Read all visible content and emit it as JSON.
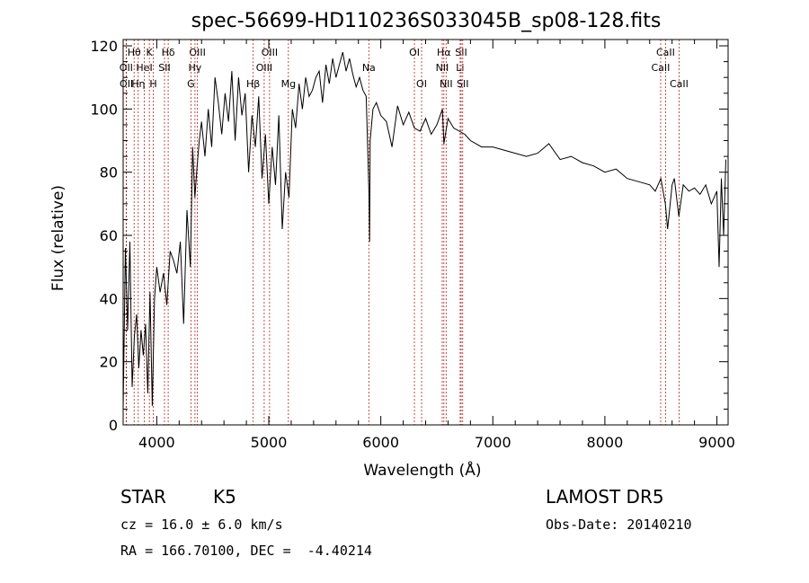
{
  "chart_data": {
    "type": "line",
    "title": "spec-56699-HD110236S033045B_sp08-128.fits",
    "xlabel": "Wavelength (Å)",
    "ylabel": "Flux (relative)",
    "xlim": [
      3700,
      9100
    ],
    "ylim": [
      0,
      122
    ],
    "xticks": [
      4000,
      5000,
      6000,
      7000,
      8000,
      9000
    ],
    "yticks": [
      0,
      20,
      40,
      60,
      80,
      100,
      120
    ],
    "grid": false,
    "series": [
      {
        "x": [
          3700,
          3720,
          3740,
          3760,
          3780,
          3800,
          3820,
          3840,
          3860,
          3880,
          3900,
          3920,
          3940,
          3960,
          3980,
          4000,
          4030,
          4060,
          4090,
          4120,
          4150,
          4180,
          4210,
          4240,
          4270,
          4300,
          4320,
          4340,
          4360,
          4380,
          4400,
          4430,
          4460,
          4490,
          4520,
          4550,
          4580,
          4610,
          4640,
          4670,
          4700,
          4730,
          4760,
          4790,
          4820,
          4850,
          4880,
          4910,
          4940,
          4970,
          5000,
          5030,
          5060,
          5090,
          5120,
          5150,
          5180,
          5210,
          5240,
          5270,
          5300,
          5330,
          5360,
          5390,
          5420,
          5450,
          5480,
          5510,
          5540,
          5570,
          5600,
          5630,
          5660,
          5690,
          5720,
          5750,
          5780,
          5810,
          5840,
          5870,
          5895,
          5900,
          5905,
          5930,
          5960,
          6000,
          6050,
          6100,
          6150,
          6200,
          6250,
          6300,
          6350,
          6400,
          6450,
          6500,
          6550,
          6563,
          6600,
          6650,
          6700,
          6750,
          6800,
          6900,
          7000,
          7100,
          7200,
          7300,
          7400,
          7500,
          7600,
          7700,
          7800,
          7900,
          8000,
          8100,
          8200,
          8300,
          8400,
          8450,
          8500,
          8540,
          8560,
          8600,
          8620,
          8660,
          8700,
          8750,
          8800,
          8850,
          8900,
          8950,
          9000,
          9020,
          9040,
          9060,
          9080
        ],
        "values": [
          5,
          56,
          30,
          58,
          12,
          28,
          35,
          18,
          30,
          22,
          32,
          10,
          42,
          6,
          40,
          50,
          42,
          48,
          38,
          55,
          52,
          48,
          58,
          32,
          68,
          50,
          88,
          72,
          82,
          90,
          96,
          85,
          100,
          88,
          110,
          102,
          92,
          105,
          96,
          112,
          90,
          110,
          98,
          105,
          80,
          98,
          88,
          104,
          78,
          92,
          70,
          88,
          76,
          98,
          62,
          80,
          72,
          100,
          94,
          108,
          100,
          110,
          104,
          106,
          110,
          112,
          102,
          114,
          108,
          116,
          110,
          114,
          118,
          112,
          116,
          111,
          107,
          110,
          106,
          104,
          72,
          58,
          90,
          100,
          102,
          98,
          96,
          88,
          101,
          95,
          99,
          94,
          93,
          97,
          92,
          95,
          100,
          89,
          97,
          94,
          93,
          92,
          90,
          88,
          88,
          87,
          86,
          85,
          86,
          89,
          84,
          85,
          83,
          82,
          80,
          81,
          78,
          77,
          76,
          74,
          78,
          70,
          62,
          76,
          78,
          66,
          76,
          74,
          75,
          73,
          76,
          70,
          74,
          50,
          78,
          60,
          84
        ]
      }
    ],
    "lines": [
      {
        "label": "Hθ",
        "x": 3798,
        "row": 1
      },
      {
        "label": "OII",
        "x": 3727,
        "row": 2
      },
      {
        "label": "OII",
        "x": 3729,
        "row": 3
      },
      {
        "label": "K",
        "x": 3934,
        "row": 1
      },
      {
        "label": "HeI",
        "x": 3889,
        "row": 2
      },
      {
        "label": "Hη",
        "x": 3835,
        "row": 3
      },
      {
        "label": "H",
        "x": 3969,
        "row": 3
      },
      {
        "label": "Hδ",
        "x": 4102,
        "row": 1
      },
      {
        "label": "SII",
        "x": 4069,
        "row": 2
      },
      {
        "label": "OIII",
        "x": 4363,
        "row": 1
      },
      {
        "label": "Hγ",
        "x": 4341,
        "row": 2
      },
      {
        "label": "G",
        "x": 4305,
        "row": 3
      },
      {
        "label": "OIII",
        "x": 5007,
        "row": 1
      },
      {
        "label": "OIII",
        "x": 4959,
        "row": 2
      },
      {
        "label": "Hβ",
        "x": 4861,
        "row": 3
      },
      {
        "label": "Mg",
        "x": 5175,
        "row": 3
      },
      {
        "label": "Na",
        "x": 5893,
        "row": 2
      },
      {
        "label": "OI",
        "x": 6300,
        "row": 1
      },
      {
        "label": "OI",
        "x": 6364,
        "row": 3
      },
      {
        "label": "Hα",
        "x": 6563,
        "row": 1
      },
      {
        "label": "NII",
        "x": 6548,
        "row": 2
      },
      {
        "label": "NII",
        "x": 6583,
        "row": 3
      },
      {
        "label": "SII",
        "x": 6717,
        "row": 1
      },
      {
        "label": "Li",
        "x": 6708,
        "row": 2
      },
      {
        "label": "SII",
        "x": 6731,
        "row": 3
      },
      {
        "label": "CaII",
        "x": 8542,
        "row": 1
      },
      {
        "label": "CaII",
        "x": 8498,
        "row": 2
      },
      {
        "label": "CaII",
        "x": 8662,
        "row": 3
      }
    ]
  },
  "info": {
    "object_type": "STAR",
    "subclass": "K5",
    "survey": "LAMOST DR5",
    "cz": "cz = 16.0 ± 6.0 km/s",
    "obs_date": "Obs-Date: 20140210",
    "coords": "RA = 166.70100, DEC =  -4.40214"
  },
  "colors": {
    "spectrum": "#000000",
    "line_markers": "#b22222"
  }
}
